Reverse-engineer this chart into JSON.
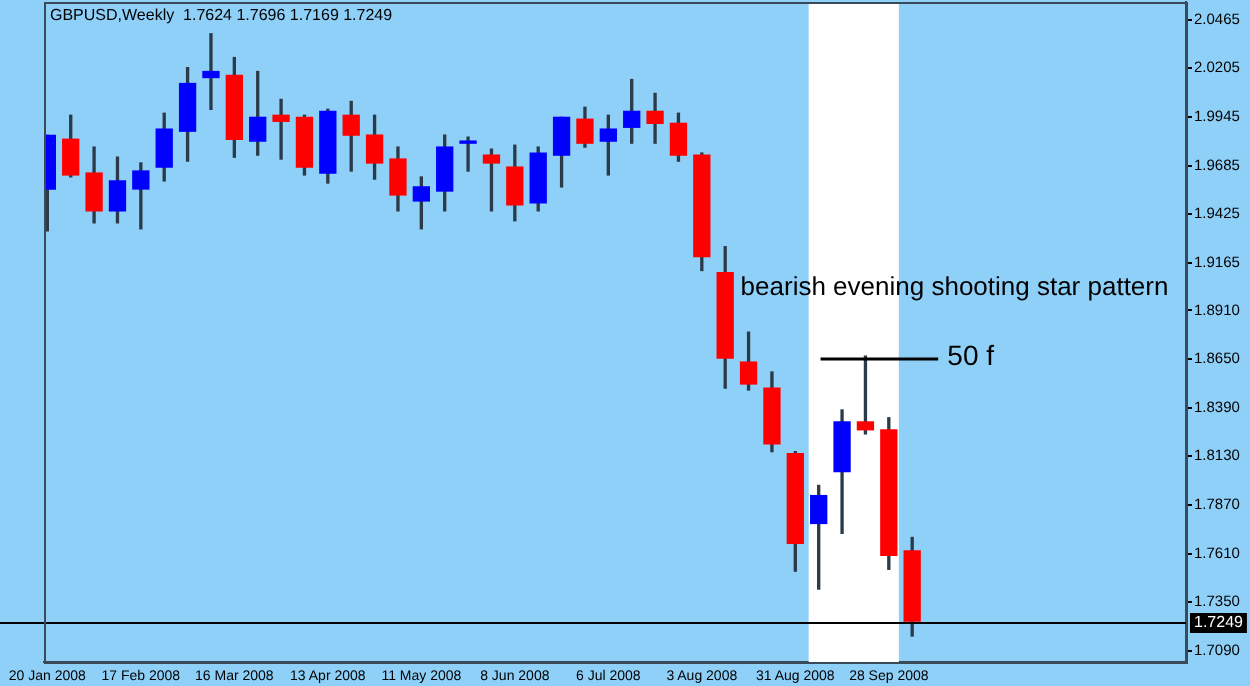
{
  "chart_data": {
    "type": "candlestick",
    "title": "GBPUSD,Weekly  1.7624 1.7696 1.7169 1.7249",
    "x": [
      "2008-01-20",
      "2008-01-27",
      "2008-02-03",
      "2008-02-10",
      "2008-02-17",
      "2008-02-24",
      "2008-03-02",
      "2008-03-09",
      "2008-03-16",
      "2008-03-23",
      "2008-03-30",
      "2008-04-06",
      "2008-04-13",
      "2008-04-20",
      "2008-04-27",
      "2008-05-04",
      "2008-05-11",
      "2008-05-18",
      "2008-05-25",
      "2008-06-01",
      "2008-06-08",
      "2008-06-15",
      "2008-06-22",
      "2008-06-29",
      "2008-07-06",
      "2008-07-13",
      "2008-07-20",
      "2008-07-27",
      "2008-08-03",
      "2008-08-10",
      "2008-08-17",
      "2008-08-24",
      "2008-08-31",
      "2008-09-07",
      "2008-09-14",
      "2008-09-21",
      "2008-09-28",
      "2008-10-05"
    ],
    "ohlc": [
      [
        1.956,
        1.9847,
        1.9336,
        1.9847
      ],
      [
        1.9826,
        1.9954,
        1.9625,
        1.9635
      ],
      [
        1.9645,
        1.9784,
        1.9379,
        1.9443
      ],
      [
        1.9443,
        1.973,
        1.9379,
        1.9603
      ],
      [
        1.956,
        1.9699,
        1.9347,
        1.9656
      ],
      [
        1.9677,
        1.9965,
        1.9603,
        1.988
      ],
      [
        1.9869,
        2.0209,
        1.9709,
        2.0124
      ],
      [
        2.0156,
        2.039,
        1.9986,
        2.0188
      ],
      [
        2.0167,
        2.0263,
        1.973,
        1.9826
      ],
      [
        1.9816,
        2.0188,
        1.9741,
        1.9943
      ],
      [
        1.9954,
        2.0039,
        1.972,
        1.9922
      ],
      [
        1.9943,
        1.9954,
        1.9635,
        1.9677
      ],
      [
        1.9645,
        1.9986,
        1.9592,
        1.9975
      ],
      [
        1.9954,
        2.0028,
        1.9656,
        1.9848
      ],
      [
        1.9848,
        1.9954,
        1.9613,
        1.9699
      ],
      [
        1.972,
        1.9784,
        1.9443,
        1.9528
      ],
      [
        1.9496,
        1.9624,
        1.9347,
        1.9571
      ],
      [
        1.9549,
        1.9848,
        1.9443,
        1.9784
      ],
      [
        1.9805,
        1.9837,
        1.9656,
        1.9816
      ],
      [
        1.9741,
        1.9773,
        1.9443,
        1.9699
      ],
      [
        1.9677,
        1.9794,
        1.939,
        1.9475
      ],
      [
        1.9486,
        1.9784,
        1.9443,
        1.9752
      ],
      [
        1.9741,
        1.9943,
        1.9571,
        1.9943
      ],
      [
        1.9933,
        1.9997,
        1.9784,
        1.9805
      ],
      [
        1.9816,
        1.9954,
        1.9635,
        1.988
      ],
      [
        1.989,
        2.0145,
        1.9805,
        1.9975
      ],
      [
        1.9975,
        2.0071,
        1.9805,
        1.9911
      ],
      [
        1.9911,
        1.9965,
        1.9709,
        1.9741
      ],
      [
        1.9741,
        1.9752,
        1.9124,
        1.9198
      ],
      [
        1.9113,
        1.9251,
        1.8495,
        1.8655
      ],
      [
        1.8634,
        1.8794,
        1.8485,
        1.8517
      ],
      [
        1.8495,
        1.8581,
        1.8155,
        1.8197
      ],
      [
        1.8144,
        1.8155,
        1.7516,
        1.7665
      ],
      [
        1.7771,
        1.7974,
        1.742,
        1.792
      ],
      [
        1.8048,
        1.8378,
        1.7718,
        1.8314
      ],
      [
        1.8314,
        1.8666,
        1.825,
        1.8272
      ],
      [
        1.8272,
        1.8336,
        1.7526,
        1.7601
      ],
      [
        1.7624,
        1.7696,
        1.7169,
        1.7249
      ]
    ],
    "colors": [
      "#0000ff",
      "#ff0000",
      "#ff0000",
      "#0000ff",
      "#0000ff",
      "#0000ff",
      "#0000ff",
      "#0000ff",
      "#ff0000",
      "#0000ff",
      "#ff0000",
      "#ff0000",
      "#0000ff",
      "#ff0000",
      "#ff0000",
      "#ff0000",
      "#0000ff",
      "#0000ff",
      "#0000ff",
      "#ff0000",
      "#ff0000",
      "#0000ff",
      "#0000ff",
      "#ff0000",
      "#0000ff",
      "#0000ff",
      "#ff0000",
      "#ff0000",
      "#ff0000",
      "#ff0000",
      "#ff0000",
      "#ff0000",
      "#ff0000",
      "#0000ff",
      "#0000ff",
      "#ff0000",
      "#ff0000",
      "#ff0000"
    ],
    "xlim": [
      "2008-01-19",
      "2008-12-26"
    ],
    "xticks": [
      {
        "value": "2008-01-20",
        "label": "20 Jan 2008"
      },
      {
        "value": "2008-02-17",
        "label": "17 Feb 2008"
      },
      {
        "value": "2008-03-16",
        "label": "16 Mar 2008"
      },
      {
        "value": "2008-04-13",
        "label": "13 Apr 2008"
      },
      {
        "value": "2008-05-11",
        "label": "11 May 2008"
      },
      {
        "value": "2008-06-08",
        "label": "8 Jun 2008"
      },
      {
        "value": "2008-07-06",
        "label": "6 Jul 2008"
      },
      {
        "value": "2008-08-03",
        "label": "3 Aug 2008"
      },
      {
        "value": "2008-08-31",
        "label": "31 Aug 2008"
      },
      {
        "value": "2008-09-28",
        "label": "28 Sep 2008"
      }
    ],
    "ylim": [
      1.703,
      2.056
    ],
    "yticks": [
      2.0465,
      2.0205,
      1.9945,
      1.9685,
      1.9425,
      1.9165,
      {
        "value": 1.891,
        "label": "1.8910"
      },
      {
        "value": 1.865,
        "label": "1.8650"
      },
      {
        "value": 1.839,
        "label": "1.8390"
      },
      {
        "value": 1.813,
        "label": "1.8130"
      },
      {
        "value": 1.787,
        "label": "1.7870"
      },
      {
        "value": 1.761,
        "label": "1.7610"
      },
      {
        "value": 1.735,
        "label": "1.7350"
      },
      {
        "value": 1.709,
        "label": "1.7090"
      }
    ],
    "ref_lines": [
      {
        "axis": "y",
        "value": 1.7249,
        "label": "1.7249",
        "color": "#000000"
      }
    ],
    "bands": [
      {
        "axis": "x",
        "from": "2008-09-04",
        "to": "2008-10-01",
        "color": "#ffffff"
      }
    ],
    "annotations": [
      "bearish evening shooting star pattern",
      "50 f"
    ],
    "grid": false,
    "legend": false
  }
}
